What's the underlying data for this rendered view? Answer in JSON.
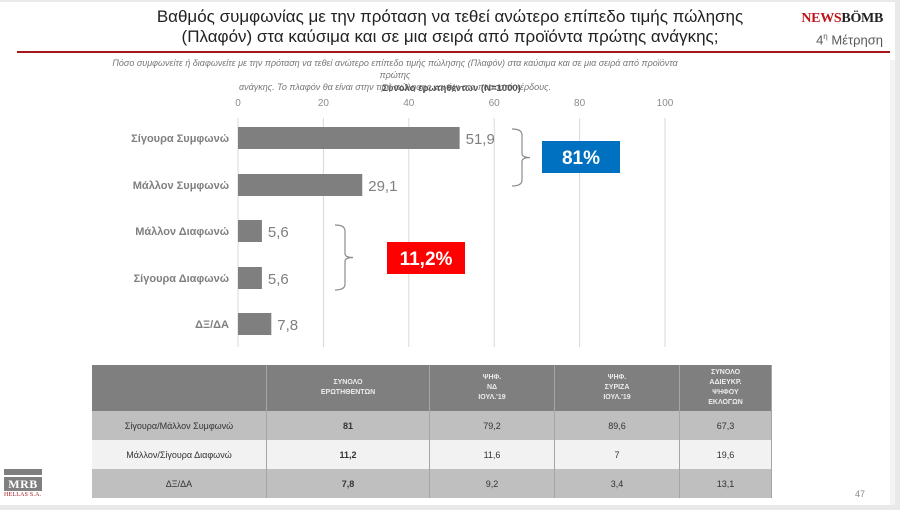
{
  "header": {
    "title_line1": "Βαθμός συμφωνίας με  την πρόταση να τεθεί ανώτερο επίπεδο τιμής πώλησης",
    "title_line2": "(Πλαφόν)  στα καύσιμα και σε μια σειρά από προϊόντα πρώτης ανάγκης;",
    "brand_part1": "NEWS",
    "brand_part2": "BÖMB",
    "wave_number": "4",
    "wave_sup": "η",
    "wave_label": " Μέτρηση"
  },
  "subtitle": {
    "line1": "Πόσο συμφωνείτε ή διαφωνείτε με την πρόταση να τεθεί ανώτερο επίπεδο τιμής πώλησης (Πλαφόν)  στα καύσιμα και σε μια σειρά από προϊόντα πρώτης",
    "line2": "ανάγκης. Το πλαφόν θα είναι στην τιμή πώλησης και όχι στο ποσοστό κέρδους."
  },
  "chart_data": {
    "type": "bar",
    "orientation": "horizontal",
    "title": "Σύνολο ερωτηθέντων (N=1000)",
    "categories": [
      "Σίγουρα Συμφωνώ",
      "Μάλλον Συμφωνώ",
      "Μάλλον Διαφωνώ",
      "Σίγουρα Διαφωνώ",
      "ΔΞ/ΔΑ"
    ],
    "values": [
      51.9,
      29.1,
      5.6,
      5.6,
      7.8
    ],
    "value_labels": [
      "51,9",
      "29,1",
      "5,6",
      "5,6",
      "7,8"
    ],
    "xlim": [
      0,
      100
    ],
    "xticks": [
      0,
      20,
      40,
      60,
      80,
      100
    ],
    "xtick_labels": [
      "0",
      "20",
      "40",
      "60",
      "80",
      "100"
    ],
    "xaxis_position": "top",
    "grid": true,
    "bar_color": "#7f7f7f",
    "annotations": [
      {
        "label": "81%",
        "groups": [
          "Σίγουρα Συμφωνώ",
          "Μάλλον Συμφωνώ"
        ],
        "color": "#0070c0"
      },
      {
        "label": "11,2%",
        "groups": [
          "Μάλλον Διαφωνώ",
          "Σίγουρα Διαφωνώ"
        ],
        "color": "#ff0000"
      }
    ]
  },
  "table": {
    "headers": [
      "",
      "ΣΥΝΟΛΟ\nΕΡΩΤΗΘΕΝΤΩΝ",
      "ΨΗΦ.\nΝΔ\nΙΟΥΛ.'19",
      "ΨΗΦ.\nΣΥΡΙΖΑ\nΙΟΥΛ.'19",
      "ΣΥΝΟΛΟ\nΑΔΙΕΥΚΡ.\nΨΗΦΟΥ\nΕΚΛΟΓΩΝ"
    ],
    "rows": [
      {
        "label": "Σίγουρα/Μάλλον Συμφωνώ",
        "values": [
          "81",
          "79,2",
          "89,6",
          "67,3"
        ]
      },
      {
        "label": "Μάλλον/Σίγουρα Διαφωνώ",
        "values": [
          "11,2",
          "11,6",
          "7",
          "19,6"
        ]
      },
      {
        "label": "ΔΞ/ΔΑ",
        "values": [
          "7,8",
          "9,2",
          "3,4",
          "13,1"
        ]
      }
    ]
  },
  "footer": {
    "logo_main": "MRB",
    "logo_sub": "HELLAS S.A.",
    "page_number": "47"
  }
}
